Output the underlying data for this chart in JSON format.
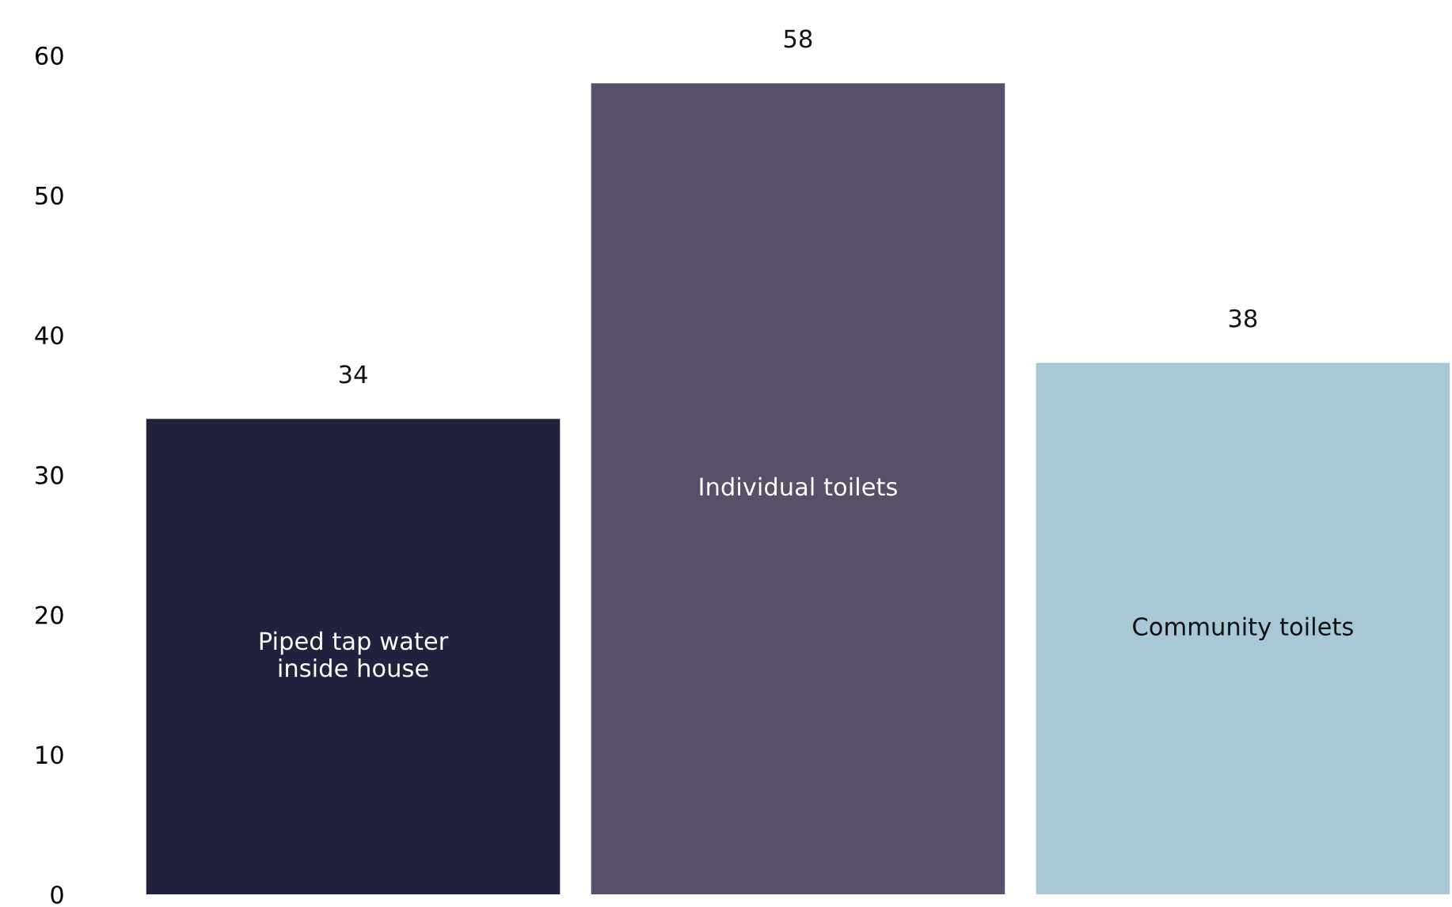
{
  "chart_data": {
    "type": "bar",
    "categories": [
      "Piped tap water\ninside house",
      "Individual toilets",
      "Community toilets"
    ],
    "values": [
      34,
      58,
      38
    ],
    "colors": [
      "#22223f",
      "#584f68",
      "#a8c8d8"
    ],
    "ylim": [
      0,
      60
    ],
    "yticks": [
      0,
      10,
      20,
      30,
      40,
      50,
      60
    ],
    "data_labels": true,
    "grid": false,
    "tick_labels": "y"
  }
}
